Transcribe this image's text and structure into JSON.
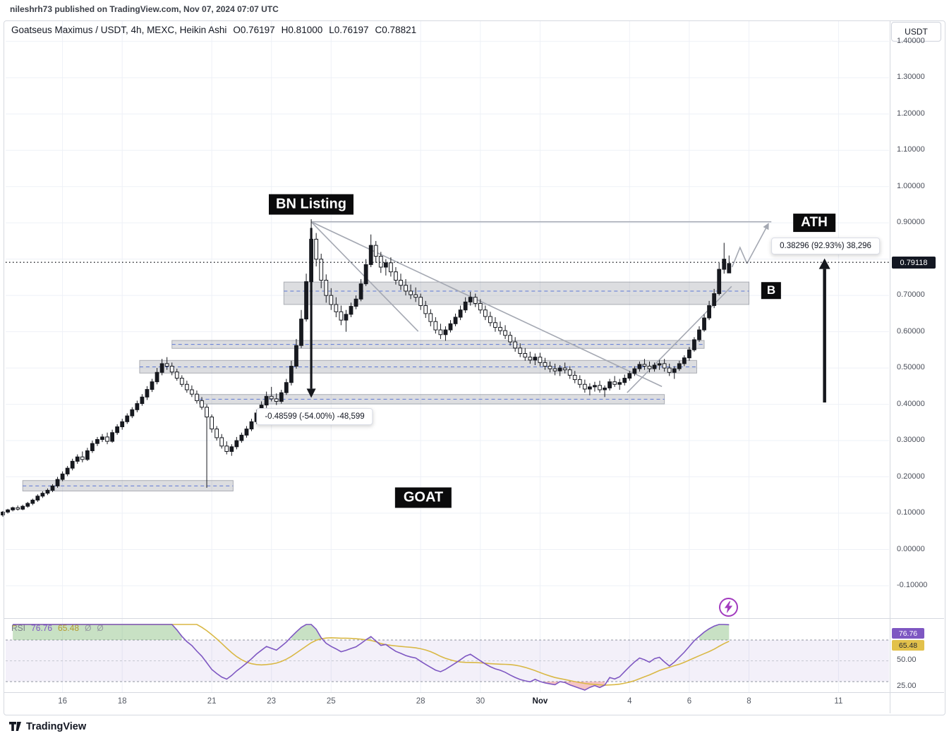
{
  "meta": {
    "published_line": "nileshrh73 published on TradingView.com, Nov 07, 2024 07:07 UTC"
  },
  "header": {
    "symbol_title": "Goatseus Maximus / USDT, 4h, MEXC, Heikin Ashi",
    "o": "O0.76197",
    "h": "H0.81000",
    "l": "L0.76197",
    "c": "C0.78821",
    "currency_button": "USDT"
  },
  "price_axis": {
    "current_price_label": "0.79118",
    "labels": [
      {
        "text": "1.40000",
        "p": 1.4
      },
      {
        "text": "1.30000",
        "p": 1.3
      },
      {
        "text": "1.20000",
        "p": 1.2
      },
      {
        "text": "1.10000",
        "p": 1.1
      },
      {
        "text": "1.00000",
        "p": 1.0
      },
      {
        "text": "0.90000",
        "p": 0.9
      },
      {
        "text": "",
        "p": 0.8
      },
      {
        "text": "0.70000",
        "p": 0.7
      },
      {
        "text": "0.60000",
        "p": 0.6
      },
      {
        "text": "0.50000",
        "p": 0.5
      },
      {
        "text": "0.40000",
        "p": 0.4
      },
      {
        "text": "0.30000",
        "p": 0.3
      },
      {
        "text": "0.20000",
        "p": 0.2
      },
      {
        "text": "0.10000",
        "p": 0.1
      },
      {
        "text": "0.00000",
        "p": 0.0
      },
      {
        "text": "-0.10000",
        "p": -0.1
      }
    ]
  },
  "time_axis": {
    "ticks": [
      {
        "label": "16",
        "i": 12
      },
      {
        "label": "18",
        "i": 24
      },
      {
        "label": "21",
        "i": 42
      },
      {
        "label": "23",
        "i": 54
      },
      {
        "label": "25",
        "i": 66
      },
      {
        "label": "28",
        "i": 84
      },
      {
        "label": "30",
        "i": 96
      },
      {
        "label": "Nov",
        "i": 108,
        "bold": true
      },
      {
        "label": "4",
        "i": 126
      },
      {
        "label": "6",
        "i": 138
      },
      {
        "label": "8",
        "i": 150
      },
      {
        "label": "11",
        "i": 168
      }
    ]
  },
  "footer": {
    "logo_text": "TradingView"
  },
  "colors": {
    "grid": "#eef1f7",
    "separator": "#d6d9e0",
    "candle": "#17191f",
    "trend": "#a4a8b2",
    "zone_fill": "rgba(130,134,145,0.28)",
    "zone_stroke": "rgba(118,122,133,0.55)",
    "zone_mid": "#5d77d4",
    "rsi_line": "#7e57c2",
    "rsi_ma": "#d9b845",
    "rsi_band": "rgba(126,87,194,0.09)",
    "rsi_ob_fill": "rgba(96,169,87,0.35)",
    "rsi_os_fill": "rgba(225,90,85,0.35)",
    "arrow": "#15171c",
    "price_line": "#17191f",
    "badge_purple": "#7e57c2",
    "badge_yellow": "#e2c14b"
  },
  "chart_data": {
    "type": "candlestick",
    "title": "Goatseus Maximus / USDT, 4h, MEXC, Heikin Ashi",
    "symbol": "GOAT/USDT",
    "timeframe": "4h",
    "exchange": "MEXC",
    "style": "Heikin Ashi",
    "last_bar": {
      "open": 0.76197,
      "high": 0.81,
      "low": 0.76197,
      "close": 0.78821
    },
    "current_price": 0.79118,
    "ylim": [
      -0.15,
      1.45
    ],
    "grid_prices": [
      -0.1,
      0.0,
      0.1,
      0.2,
      0.3,
      0.4,
      0.5,
      0.6,
      0.7,
      0.8,
      0.9,
      1.0,
      1.1,
      1.2,
      1.3,
      1.4
    ],
    "candles": [
      [
        0.095,
        0.106,
        0.09,
        0.103
      ],
      [
        0.103,
        0.112,
        0.099,
        0.109
      ],
      [
        0.109,
        0.118,
        0.105,
        0.115
      ],
      [
        0.115,
        0.121,
        0.107,
        0.111
      ],
      [
        0.111,
        0.123,
        0.108,
        0.119
      ],
      [
        0.119,
        0.131,
        0.115,
        0.127
      ],
      [
        0.127,
        0.14,
        0.122,
        0.136
      ],
      [
        0.136,
        0.152,
        0.131,
        0.147
      ],
      [
        0.147,
        0.16,
        0.142,
        0.155
      ],
      [
        0.155,
        0.168,
        0.15,
        0.163
      ],
      [
        0.163,
        0.18,
        0.158,
        0.175
      ],
      [
        0.175,
        0.2,
        0.17,
        0.193
      ],
      [
        0.193,
        0.215,
        0.188,
        0.208
      ],
      [
        0.208,
        0.23,
        0.202,
        0.224
      ],
      [
        0.224,
        0.25,
        0.218,
        0.243
      ],
      [
        0.243,
        0.262,
        0.236,
        0.255
      ],
      [
        0.255,
        0.27,
        0.24,
        0.248
      ],
      [
        0.248,
        0.28,
        0.244,
        0.272
      ],
      [
        0.272,
        0.3,
        0.266,
        0.292
      ],
      [
        0.292,
        0.31,
        0.285,
        0.303
      ],
      [
        0.303,
        0.318,
        0.296,
        0.31
      ],
      [
        0.31,
        0.322,
        0.29,
        0.298
      ],
      [
        0.298,
        0.33,
        0.294,
        0.322
      ],
      [
        0.322,
        0.345,
        0.316,
        0.338
      ],
      [
        0.338,
        0.36,
        0.33,
        0.352
      ],
      [
        0.352,
        0.375,
        0.346,
        0.368
      ],
      [
        0.368,
        0.392,
        0.362,
        0.385
      ],
      [
        0.385,
        0.41,
        0.378,
        0.402
      ],
      [
        0.402,
        0.428,
        0.396,
        0.42
      ],
      [
        0.42,
        0.45,
        0.412,
        0.441
      ],
      [
        0.441,
        0.47,
        0.434,
        0.462
      ],
      [
        0.462,
        0.5,
        0.455,
        0.488
      ],
      [
        0.488,
        0.525,
        0.48,
        0.512
      ],
      [
        0.512,
        0.53,
        0.495,
        0.505
      ],
      [
        0.505,
        0.515,
        0.48,
        0.489
      ],
      [
        0.489,
        0.498,
        0.465,
        0.472
      ],
      [
        0.472,
        0.48,
        0.448,
        0.455
      ],
      [
        0.455,
        0.465,
        0.432,
        0.44
      ],
      [
        0.44,
        0.452,
        0.42,
        0.428
      ],
      [
        0.428,
        0.438,
        0.402,
        0.41
      ],
      [
        0.41,
        0.42,
        0.385,
        0.392
      ],
      [
        0.392,
        0.4,
        0.17,
        0.365
      ],
      [
        0.365,
        0.372,
        0.322,
        0.332
      ],
      [
        0.332,
        0.34,
        0.3,
        0.308
      ],
      [
        0.308,
        0.318,
        0.278,
        0.285
      ],
      [
        0.285,
        0.298,
        0.262,
        0.27
      ],
      [
        0.27,
        0.29,
        0.258,
        0.283
      ],
      [
        0.283,
        0.31,
        0.276,
        0.3
      ],
      [
        0.3,
        0.322,
        0.294,
        0.315
      ],
      [
        0.315,
        0.34,
        0.308,
        0.332
      ],
      [
        0.332,
        0.36,
        0.326,
        0.352
      ],
      [
        0.352,
        0.385,
        0.346,
        0.376
      ],
      [
        0.376,
        0.408,
        0.37,
        0.398
      ],
      [
        0.398,
        0.435,
        0.39,
        0.422
      ],
      [
        0.422,
        0.448,
        0.408,
        0.415
      ],
      [
        0.415,
        0.43,
        0.398,
        0.408
      ],
      [
        0.408,
        0.44,
        0.402,
        0.432
      ],
      [
        0.432,
        0.47,
        0.426,
        0.46
      ],
      [
        0.46,
        0.52,
        0.452,
        0.505
      ],
      [
        0.505,
        0.58,
        0.498,
        0.562
      ],
      [
        0.562,
        0.66,
        0.555,
        0.635
      ],
      [
        0.635,
        0.76,
        0.628,
        0.738
      ],
      [
        0.738,
        0.91,
        0.73,
        0.855
      ],
      [
        0.855,
        0.872,
        0.78,
        0.8
      ],
      [
        0.8,
        0.815,
        0.72,
        0.742
      ],
      [
        0.742,
        0.758,
        0.68,
        0.7
      ],
      [
        0.7,
        0.72,
        0.66,
        0.675
      ],
      [
        0.675,
        0.695,
        0.64,
        0.655
      ],
      [
        0.655,
        0.672,
        0.618,
        0.632
      ],
      [
        0.632,
        0.66,
        0.6,
        0.648
      ],
      [
        0.648,
        0.68,
        0.64,
        0.67
      ],
      [
        0.67,
        0.7,
        0.662,
        0.69
      ],
      [
        0.69,
        0.745,
        0.684,
        0.732
      ],
      [
        0.732,
        0.8,
        0.726,
        0.785
      ],
      [
        0.785,
        0.868,
        0.778,
        0.838
      ],
      [
        0.838,
        0.85,
        0.79,
        0.808
      ],
      [
        0.808,
        0.82,
        0.762,
        0.778
      ],
      [
        0.778,
        0.8,
        0.755,
        0.79
      ],
      [
        0.79,
        0.805,
        0.752,
        0.765
      ],
      [
        0.765,
        0.778,
        0.73,
        0.742
      ],
      [
        0.742,
        0.76,
        0.715,
        0.728
      ],
      [
        0.728,
        0.745,
        0.7,
        0.712
      ],
      [
        0.712,
        0.73,
        0.69,
        0.702
      ],
      [
        0.702,
        0.722,
        0.682,
        0.695
      ],
      [
        0.695,
        0.705,
        0.66,
        0.672
      ],
      [
        0.672,
        0.685,
        0.638,
        0.65
      ],
      [
        0.65,
        0.662,
        0.615,
        0.628
      ],
      [
        0.628,
        0.64,
        0.595,
        0.605
      ],
      [
        0.605,
        0.622,
        0.58,
        0.592
      ],
      [
        0.592,
        0.615,
        0.575,
        0.605
      ],
      [
        0.605,
        0.632,
        0.598,
        0.622
      ],
      [
        0.622,
        0.65,
        0.615,
        0.64
      ],
      [
        0.64,
        0.672,
        0.632,
        0.66
      ],
      [
        0.66,
        0.695,
        0.652,
        0.682
      ],
      [
        0.682,
        0.71,
        0.672,
        0.695
      ],
      [
        0.695,
        0.705,
        0.668,
        0.678
      ],
      [
        0.678,
        0.69,
        0.65,
        0.66
      ],
      [
        0.66,
        0.672,
        0.632,
        0.642
      ],
      [
        0.642,
        0.655,
        0.615,
        0.625
      ],
      [
        0.625,
        0.64,
        0.6,
        0.612
      ],
      [
        0.612,
        0.628,
        0.592,
        0.603
      ],
      [
        0.603,
        0.618,
        0.58,
        0.59
      ],
      [
        0.59,
        0.6,
        0.562,
        0.572
      ],
      [
        0.572,
        0.585,
        0.545,
        0.555
      ],
      [
        0.555,
        0.568,
        0.53,
        0.54
      ],
      [
        0.54,
        0.555,
        0.52,
        0.53
      ],
      [
        0.53,
        0.545,
        0.512,
        0.522
      ],
      [
        0.522,
        0.54,
        0.508,
        0.53
      ],
      [
        0.53,
        0.542,
        0.505,
        0.515
      ],
      [
        0.515,
        0.528,
        0.495,
        0.505
      ],
      [
        0.505,
        0.518,
        0.488,
        0.498
      ],
      [
        0.498,
        0.512,
        0.48,
        0.492
      ],
      [
        0.492,
        0.508,
        0.478,
        0.5
      ],
      [
        0.5,
        0.515,
        0.485,
        0.495
      ],
      [
        0.495,
        0.505,
        0.47,
        0.48
      ],
      [
        0.48,
        0.492,
        0.458,
        0.468
      ],
      [
        0.468,
        0.48,
        0.445,
        0.455
      ],
      [
        0.455,
        0.468,
        0.432,
        0.442
      ],
      [
        0.442,
        0.458,
        0.425,
        0.448
      ],
      [
        0.448,
        0.462,
        0.435,
        0.452
      ],
      [
        0.452,
        0.465,
        0.432,
        0.44
      ],
      [
        0.44,
        0.452,
        0.42,
        0.445
      ],
      [
        0.445,
        0.47,
        0.438,
        0.462
      ],
      [
        0.462,
        0.478,
        0.448,
        0.455
      ],
      [
        0.455,
        0.47,
        0.44,
        0.46
      ],
      [
        0.46,
        0.482,
        0.452,
        0.472
      ],
      [
        0.472,
        0.492,
        0.465,
        0.485
      ],
      [
        0.485,
        0.505,
        0.478,
        0.498
      ],
      [
        0.498,
        0.518,
        0.49,
        0.51
      ],
      [
        0.51,
        0.525,
        0.495,
        0.505
      ],
      [
        0.505,
        0.518,
        0.488,
        0.498
      ],
      [
        0.498,
        0.515,
        0.49,
        0.508
      ],
      [
        0.508,
        0.522,
        0.495,
        0.512
      ],
      [
        0.512,
        0.525,
        0.49,
        0.5
      ],
      [
        0.5,
        0.512,
        0.478,
        0.488
      ],
      [
        0.488,
        0.505,
        0.47,
        0.498
      ],
      [
        0.498,
        0.52,
        0.492,
        0.512
      ],
      [
        0.512,
        0.535,
        0.505,
        0.528
      ],
      [
        0.528,
        0.558,
        0.52,
        0.55
      ],
      [
        0.55,
        0.585,
        0.545,
        0.578
      ],
      [
        0.578,
        0.615,
        0.572,
        0.605
      ],
      [
        0.605,
        0.648,
        0.6,
        0.638
      ],
      [
        0.638,
        0.685,
        0.632,
        0.672
      ],
      [
        0.672,
        0.718,
        0.665,
        0.705
      ],
      [
        0.705,
        0.79,
        0.7,
        0.772
      ],
      [
        0.772,
        0.845,
        0.76,
        0.8
      ],
      [
        0.762,
        0.81,
        0.762,
        0.788
      ]
    ],
    "zones": [
      {
        "i1": 56.5,
        "i2": 150,
        "top": 0.737,
        "bottom": 0.675,
        "mid": 0.712
      },
      {
        "i1": 34,
        "i2": 141,
        "top": 0.576,
        "bottom": 0.554,
        "mid": 0.565
      },
      {
        "i1": 27.5,
        "i2": 139.5,
        "top": 0.521,
        "bottom": 0.486,
        "mid": 0.503
      },
      {
        "i1": 39.5,
        "i2": 133,
        "top": 0.427,
        "bottom": 0.401,
        "mid": 0.414
      },
      {
        "i1": 4,
        "i2": 46.3,
        "top": 0.19,
        "bottom": 0.161,
        "mid": 0.175
      }
    ],
    "trendlines": [
      {
        "pts": [
          [
            62,
            0.903
          ],
          [
            154.5,
            0.903
          ]
        ]
      },
      {
        "pts": [
          [
            62,
            0.903
          ],
          [
            132.5,
            0.449
          ]
        ]
      },
      {
        "pts": [
          [
            62,
            0.903
          ],
          [
            83.5,
            0.601
          ]
        ]
      },
      {
        "pts": [
          [
            125.5,
            0.432
          ],
          [
            146.5,
            0.725
          ]
        ]
      },
      {
        "pts": [
          [
            146.6,
            0.778
          ],
          [
            148.2,
            0.832
          ],
          [
            149.6,
            0.788
          ],
          [
            154,
            0.9
          ]
        ],
        "arrow": true
      }
    ],
    "measure_arrow": {
      "i": 62,
      "p_from": 0.886,
      "p_to": 0.418
    },
    "big_arrow": {
      "i": 165.2,
      "p_from": 0.405,
      "p_to": 0.802
    },
    "annotations": {
      "bn_listing": "BN Listing",
      "ath": "ATH",
      "b": "B",
      "goat": "GOAT",
      "drop_measure": "-0.48599 (-54.00%) -48,599",
      "rise_measure": "0.38296 (92.93%) 38,296"
    },
    "rsi": {
      "label": "RSI",
      "value1": "76.76",
      "value2": "65.48",
      "empty1": "Ø",
      "empty2": "Ø",
      "levels": [
        70,
        50,
        30
      ],
      "axis_labels": [
        "50.00",
        "25.00"
      ]
    }
  }
}
